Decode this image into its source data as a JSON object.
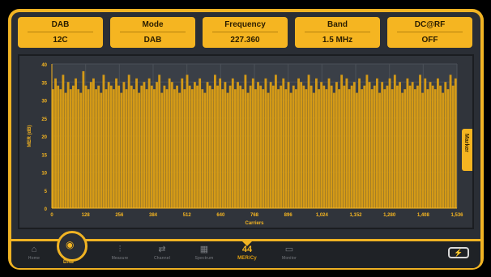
{
  "params": [
    {
      "label": "DAB",
      "value": "12C"
    },
    {
      "label": "Mode",
      "value": "DAB"
    },
    {
      "label": "Frequency",
      "value": "227.360"
    },
    {
      "label": "Band",
      "value": "1.5 MHz"
    },
    {
      "label": "DC@RF",
      "value": "OFF"
    }
  ],
  "side_tab_label": "Marker",
  "colors": {
    "accent": "#f5b521",
    "bar": "#d49a17",
    "background": "#2a2e35"
  },
  "chart_data": {
    "type": "bar",
    "ylabel": "MER (dB)",
    "xlabel": "Carriers",
    "ylim": [
      0,
      40
    ],
    "xlim": [
      0,
      1536
    ],
    "yticks": [
      "40",
      "35",
      "30",
      "25",
      "20",
      "15",
      "10",
      "5",
      "0"
    ],
    "xticks": [
      "0",
      "128",
      "256",
      "384",
      "512",
      "640",
      "768",
      "896",
      "1,024",
      "1,152",
      "1,280",
      "1,408",
      "1,536"
    ],
    "values": [
      33,
      36,
      34,
      33,
      37,
      32,
      35,
      33,
      34,
      36,
      33,
      32,
      38,
      34,
      33,
      35,
      36,
      33,
      34,
      32,
      37,
      33,
      35,
      34,
      33,
      36,
      34,
      32,
      35,
      33,
      37,
      34,
      33,
      36,
      32,
      34,
      35,
      33,
      36,
      34,
      33,
      35,
      37,
      32,
      34,
      33,
      36,
      35,
      33,
      34,
      32,
      36,
      33,
      37,
      34,
      33,
      35,
      34,
      36,
      33,
      32,
      35,
      34,
      33,
      37,
      34,
      36,
      33,
      35,
      32,
      34,
      36,
      33,
      35,
      34,
      33,
      37,
      32,
      34,
      36,
      33,
      35,
      34,
      33,
      36,
      32,
      35,
      34,
      37,
      33,
      34,
      36,
      33,
      35,
      32,
      34,
      33,
      36,
      35,
      34,
      33,
      37,
      34,
      32,
      36,
      33,
      35,
      34,
      33,
      36,
      34,
      32,
      35,
      33,
      37,
      34,
      36,
      33,
      34,
      35,
      32,
      36,
      33,
      34,
      37,
      35,
      33,
      34,
      36,
      32,
      35,
      33,
      34,
      36,
      33,
      37,
      34,
      35,
      32,
      33,
      36,
      34,
      35,
      33,
      34,
      37,
      32,
      36,
      33,
      35,
      34,
      33,
      36,
      34,
      32,
      35,
      33,
      37,
      34,
      36
    ]
  },
  "nav": [
    {
      "icon": "⌂",
      "label": "Home"
    },
    {
      "icon": "◉",
      "label": "DAB"
    },
    {
      "icon": "⫶",
      "label": "Measure"
    },
    {
      "icon": "⇄",
      "label": "Channel"
    },
    {
      "icon": "▦",
      "label": "Spectrum"
    },
    {
      "icon": "44",
      "label": "MER/Cy"
    },
    {
      "icon": "▭",
      "label": "Monitor"
    }
  ]
}
